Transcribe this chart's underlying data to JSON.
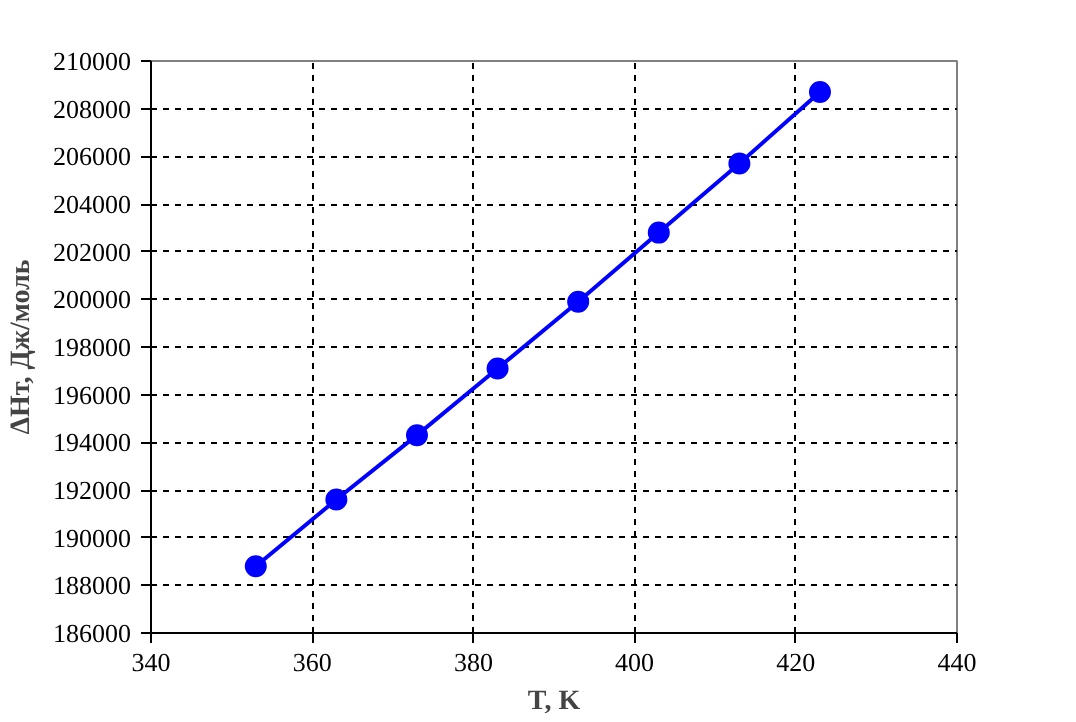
{
  "chart_data": {
    "type": "line",
    "xlabel": "T, K",
    "ylabel": "ΔHт, Дж/моль",
    "x": [
      353,
      363,
      373,
      383,
      393,
      403,
      413,
      423
    ],
    "series": [
      {
        "color": "#0000ff",
        "values": [
          188800,
          191600,
          194300,
          197100,
          199900,
          202800,
          205700,
          208700
        ]
      }
    ],
    "xlim": [
      340,
      440
    ],
    "xticks": [
      340,
      360,
      380,
      400,
      420,
      440
    ],
    "ylim": [
      186000,
      210000
    ],
    "yticks": [
      186000,
      188000,
      190000,
      192000,
      194000,
      196000,
      198000,
      200000,
      202000,
      204000,
      206000,
      208000,
      210000
    ],
    "grid": true,
    "marker": "circle",
    "line_style": "solid"
  }
}
